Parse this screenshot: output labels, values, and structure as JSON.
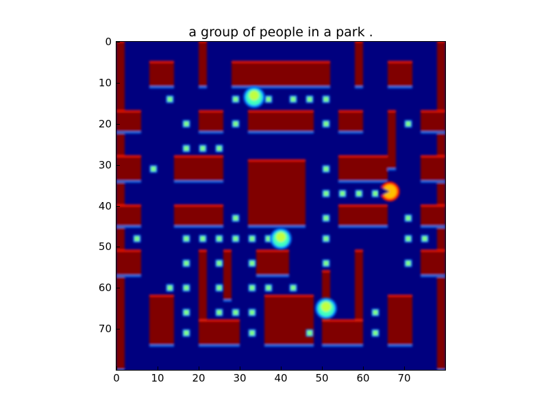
{
  "title": "a group of people in a park .",
  "axes": {
    "x_ticks": [
      "0",
      "10",
      "20",
      "30",
      "40",
      "50",
      "60",
      "70"
    ],
    "y_ticks": [
      "0",
      "10",
      "20",
      "30",
      "40",
      "50",
      "60",
      "70"
    ],
    "x_range": [
      0,
      80
    ],
    "y_range": [
      0,
      80
    ],
    "y_inverted": true
  },
  "colors": {
    "background": "#00007f",
    "wall": "#800000",
    "wall_edge_warm": "#ff1a00",
    "wall_edge_cool": "#0080ff",
    "wall_edge_cyan": "#40ffc0",
    "pellet": "#80ff80",
    "ghost": "#c0ff40",
    "pacman": "#ffc000"
  },
  "game": {
    "walls": [
      {
        "x": 0,
        "y": 0,
        "w": 2,
        "h": 80
      },
      {
        "x": 78,
        "y": 0,
        "w": 2,
        "h": 80
      },
      {
        "x": 8,
        "y": 5,
        "w": 6,
        "h": 6
      },
      {
        "x": 20,
        "y": 0,
        "w": 2,
        "h": 11
      },
      {
        "x": 28,
        "y": 5,
        "w": 24,
        "h": 6
      },
      {
        "x": 58,
        "y": 0,
        "w": 2,
        "h": 11
      },
      {
        "x": 66,
        "y": 5,
        "w": 6,
        "h": 6
      },
      {
        "x": 0,
        "y": 17,
        "w": 6,
        "h": 5
      },
      {
        "x": 20,
        "y": 17,
        "w": 6,
        "h": 5
      },
      {
        "x": 32,
        "y": 17,
        "w": 16,
        "h": 5
      },
      {
        "x": 54,
        "y": 17,
        "w": 6,
        "h": 5
      },
      {
        "x": 66,
        "y": 17,
        "w": 2,
        "h": 14
      },
      {
        "x": 74,
        "y": 17,
        "w": 6,
        "h": 5
      },
      {
        "x": 0,
        "y": 28,
        "w": 6,
        "h": 6
      },
      {
        "x": 14,
        "y": 28,
        "w": 12,
        "h": 6
      },
      {
        "x": 54,
        "y": 28,
        "w": 12,
        "h": 6
      },
      {
        "x": 74,
        "y": 28,
        "w": 6,
        "h": 6
      },
      {
        "x": 32,
        "y": 29,
        "w": 14,
        "h": 16
      },
      {
        "x": 0,
        "y": 40,
        "w": 6,
        "h": 5
      },
      {
        "x": 14,
        "y": 40,
        "w": 12,
        "h": 5
      },
      {
        "x": 54,
        "y": 40,
        "w": 12,
        "h": 5
      },
      {
        "x": 74,
        "y": 40,
        "w": 6,
        "h": 5
      },
      {
        "x": 20,
        "y": 51,
        "w": 2,
        "h": 17
      },
      {
        "x": 34,
        "y": 51,
        "w": 8,
        "h": 6
      },
      {
        "x": 58,
        "y": 51,
        "w": 2,
        "h": 17
      },
      {
        "x": 0,
        "y": 51,
        "w": 6,
        "h": 6
      },
      {
        "x": 74,
        "y": 51,
        "w": 6,
        "h": 6
      },
      {
        "x": 26,
        "y": 51,
        "w": 2,
        "h": 12
      },
      {
        "x": 50,
        "y": 56,
        "w": 2,
        "h": 12
      },
      {
        "x": 8,
        "y": 62,
        "w": 6,
        "h": 12
      },
      {
        "x": 20,
        "y": 68,
        "w": 10,
        "h": 6
      },
      {
        "x": 36,
        "y": 62,
        "w": 12,
        "h": 12
      },
      {
        "x": 50,
        "y": 68,
        "w": 10,
        "h": 6
      },
      {
        "x": 66,
        "y": 62,
        "w": 6,
        "h": 12
      }
    ],
    "pellets": [
      [
        13,
        14
      ],
      [
        29,
        14
      ],
      [
        37,
        14
      ],
      [
        43,
        14
      ],
      [
        47,
        14
      ],
      [
        51,
        14
      ],
      [
        17,
        20
      ],
      [
        29,
        20
      ],
      [
        51,
        20
      ],
      [
        71,
        20
      ],
      [
        17,
        26
      ],
      [
        21,
        26
      ],
      [
        25,
        26
      ],
      [
        9,
        31
      ],
      [
        51,
        31
      ],
      [
        51,
        37
      ],
      [
        55,
        37
      ],
      [
        59,
        37
      ],
      [
        63,
        37
      ],
      [
        29,
        43
      ],
      [
        51,
        43
      ],
      [
        71,
        43
      ],
      [
        5,
        48
      ],
      [
        17,
        48
      ],
      [
        21,
        48
      ],
      [
        25,
        48
      ],
      [
        29,
        48
      ],
      [
        33,
        48
      ],
      [
        37,
        48
      ],
      [
        51,
        48
      ],
      [
        71,
        48
      ],
      [
        75,
        48
      ],
      [
        17,
        54
      ],
      [
        25,
        54
      ],
      [
        33,
        54
      ],
      [
        51,
        54
      ],
      [
        71,
        54
      ],
      [
        13,
        60
      ],
      [
        17,
        60
      ],
      [
        25,
        60
      ],
      [
        33,
        60
      ],
      [
        37,
        60
      ],
      [
        43,
        60
      ],
      [
        17,
        66
      ],
      [
        25,
        66
      ],
      [
        29,
        66
      ],
      [
        33,
        66
      ],
      [
        63,
        66
      ],
      [
        17,
        71
      ],
      [
        33,
        71
      ],
      [
        47,
        71
      ],
      [
        63,
        71
      ]
    ],
    "ghosts": [
      [
        33.5,
        13.5
      ],
      [
        40,
        48
      ],
      [
        51,
        65
      ]
    ],
    "pacman": [
      [
        66.5,
        36.5
      ]
    ]
  }
}
